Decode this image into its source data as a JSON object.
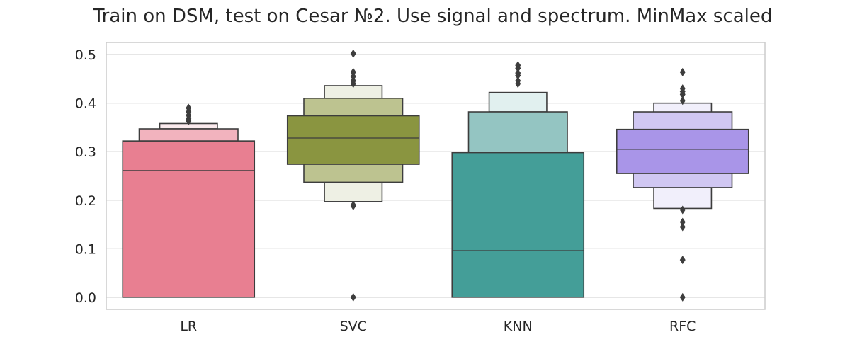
{
  "chart_data": {
    "type": "boxen",
    "title": "Train on DSM, test on Cesar №2. Use signal and spectrum. MinMax scaled",
    "xlabel": "",
    "ylabel": "",
    "ylim": [
      -0.025,
      0.525
    ],
    "yticks": [
      0.0,
      0.1,
      0.2,
      0.3,
      0.4,
      0.5
    ],
    "ytick_labels": [
      "0.0",
      "0.1",
      "0.2",
      "0.3",
      "0.4",
      "0.5"
    ],
    "grid": true,
    "categories": [
      "LR",
      "SVC",
      "KNN",
      "RFC"
    ],
    "series": [
      {
        "category": "LR",
        "median": 0.261,
        "boxes": [
          {
            "low": 0.0,
            "high": 0.322,
            "color": "#e87f91"
          },
          {
            "low": 0.322,
            "high": 0.347,
            "color": "#f2b3be"
          },
          {
            "low": 0.347,
            "high": 0.358,
            "color": "#faeaed"
          }
        ],
        "outliers": [
          0.363,
          0.368,
          0.375,
          0.382,
          0.39
        ]
      },
      {
        "category": "SVC",
        "median": 0.328,
        "boxes": [
          {
            "low": 0.274,
            "high": 0.374,
            "color": "#8a9540"
          },
          {
            "low": 0.237,
            "high": 0.41,
            "color": "#bdc390"
          },
          {
            "low": 0.197,
            "high": 0.436,
            "color": "#eef0e4"
          }
        ],
        "outliers": [
          0.0,
          0.188,
          0.19,
          0.44,
          0.446,
          0.455,
          0.464,
          0.502
        ]
      },
      {
        "category": "KNN",
        "median": 0.096,
        "boxes": [
          {
            "low": 0.0,
            "high": 0.298,
            "color": "#449e98"
          },
          {
            "low": 0.298,
            "high": 0.382,
            "color": "#94c5c2"
          },
          {
            "low": 0.382,
            "high": 0.422,
            "color": "#e1f0ef"
          }
        ],
        "outliers": [
          0.44,
          0.446,
          0.457,
          0.462,
          0.472,
          0.478
        ]
      },
      {
        "category": "RFC",
        "median": 0.305,
        "boxes": [
          {
            "low": 0.255,
            "high": 0.346,
            "color": "#a995e8"
          },
          {
            "low": 0.226,
            "high": 0.382,
            "color": "#d0c7f2"
          },
          {
            "low": 0.183,
            "high": 0.4,
            "color": "#f1effb"
          }
        ],
        "outliers": [
          0.0,
          0.077,
          0.145,
          0.155,
          0.18,
          0.405,
          0.418,
          0.424,
          0.43,
          0.464
        ]
      }
    ]
  }
}
